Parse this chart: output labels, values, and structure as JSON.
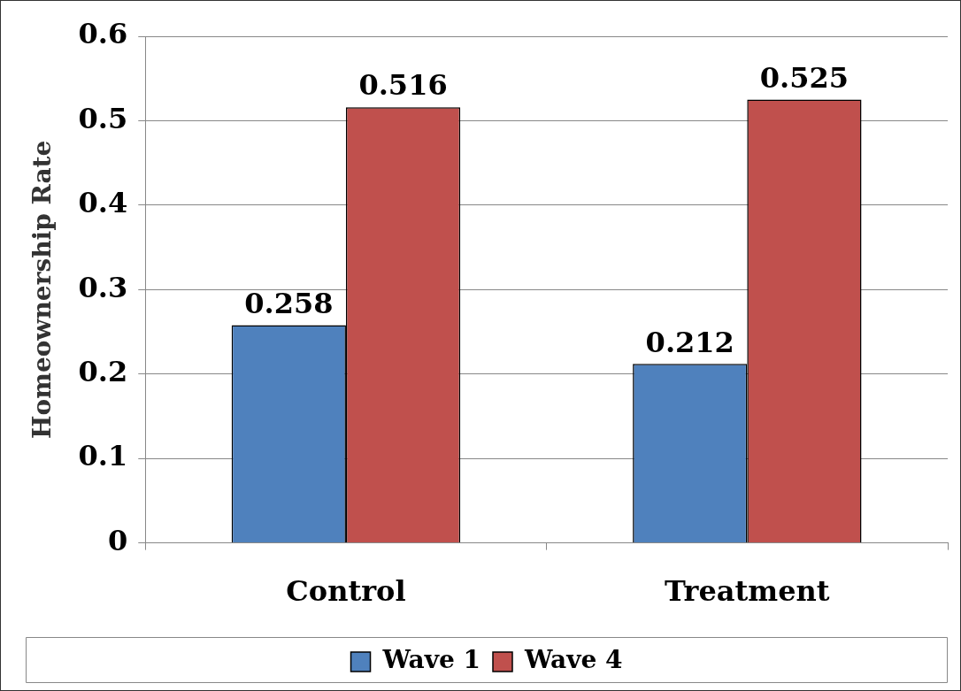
{
  "chart_data": {
    "type": "bar",
    "ylabel": "Homeownership Rate",
    "categories": [
      "Control",
      "Treatment"
    ],
    "series": [
      {
        "name": "Wave 1",
        "color": "#4f81bd",
        "values": [
          0.258,
          0.212
        ]
      },
      {
        "name": "Wave 4",
        "color": "#c0504d",
        "values": [
          0.516,
          0.525
        ]
      }
    ],
    "ylim": [
      0,
      0.6
    ],
    "yticks": [
      0,
      0.1,
      0.2,
      0.3,
      0.4,
      0.5,
      0.6
    ],
    "grid": "y",
    "legend": "bottom",
    "data_labels": true
  }
}
